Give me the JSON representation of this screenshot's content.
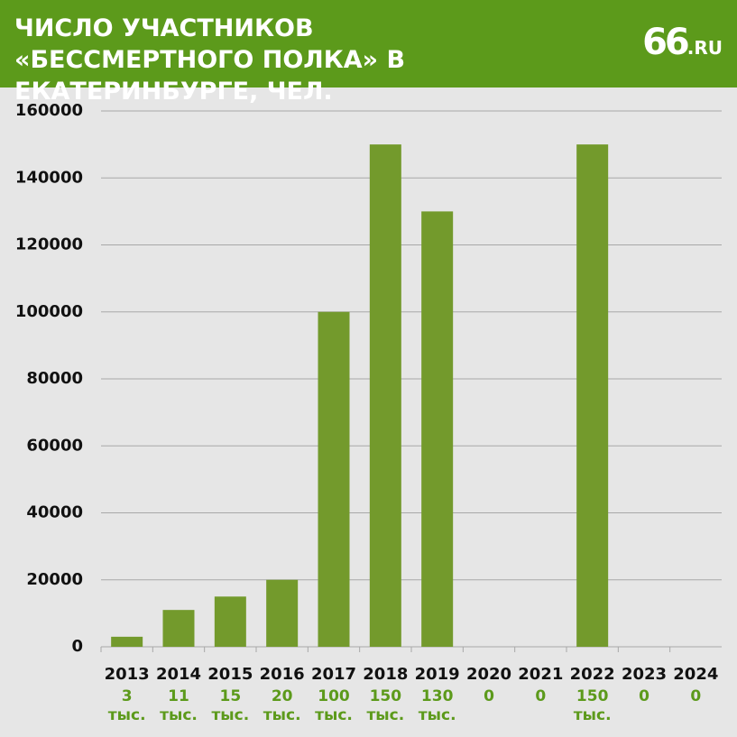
{
  "chart_data": {
    "type": "bar",
    "title": "ЧИСЛО УЧАСТНИКОВ «БЕССМЕРТНОГО ПОЛКА» В ЕКАТЕРИНБУРГЕ, ЧЕЛ.",
    "categories": [
      "2013",
      "2014",
      "2015",
      "2016",
      "2017",
      "2018",
      "2019",
      "2020",
      "2021",
      "2022",
      "2023",
      "2024"
    ],
    "values": [
      3000,
      11000,
      15000,
      20000,
      100000,
      150000,
      130000,
      0,
      0,
      150000,
      0,
      0
    ],
    "value_labels": [
      "3 тыс.",
      "11 тыс.",
      "15 тыс.",
      "20 тыс.",
      "100 тыс.",
      "150 тыс.",
      "130 тыс.",
      "0",
      "0",
      "150 тыс.",
      "0",
      "0"
    ],
    "color": "#739a2c",
    "ylim": [
      0,
      160000
    ],
    "yticks": [
      0,
      20000,
      40000,
      60000,
      80000,
      100000,
      120000,
      140000,
      160000
    ],
    "grid": true
  },
  "brand": {
    "number": "66",
    "suffix": ".RU"
  }
}
